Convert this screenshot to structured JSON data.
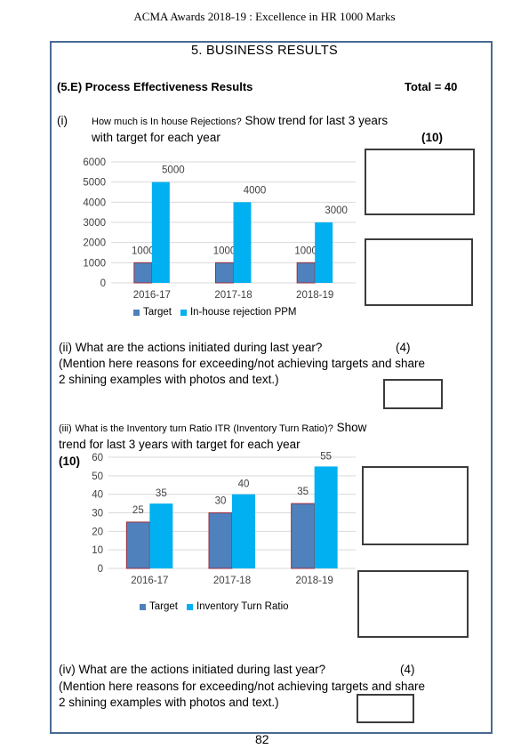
{
  "header": "ACMA Awards 2018-19 : Excellence in HR 1000 Marks",
  "section_title": "5. BUSINESS RESULTS",
  "subsection": "(5.E) Process Effectiveness Results",
  "total": "Total = 40",
  "q1": {
    "num": "(i)",
    "small": "How much is In house Rejections?",
    "rest": " Show trend for last 3 years",
    "line2": "with target for each year",
    "marks": "(10)"
  },
  "q2": {
    "line1": "(ii) What are the actions initiated during last year?",
    "marks": "(4)",
    "line2": "(Mention here reasons for exceeding/not achieving targets and share",
    "line3": "2 shining examples with photos and text.)"
  },
  "q3": {
    "num": "(iii)",
    "small": "What is the Inventory turn Ratio ITR (Inventory Turn Ratio)?",
    "rest": " Show",
    "line2": "trend for last 3 years with target for each year",
    "marks": "(10)"
  },
  "q4": {
    "line1": "(iv) What are the actions initiated during last year?",
    "marks": "(4)",
    "line2": "(Mention here reasons for exceeding/not achieving targets and share",
    "line3": "2 shining examples with photos and text.)"
  },
  "page_number": "82",
  "colors": {
    "target": "#4f81bd",
    "actual": "#00b0f0",
    "frame": "#4a6a93"
  },
  "chart_data": [
    {
      "type": "bar",
      "categories": [
        "2016-17",
        "2017-18",
        "2018-19"
      ],
      "series": [
        {
          "name": "Target",
          "values": [
            1000,
            1000,
            1000
          ]
        },
        {
          "name": "In-house rejection PPM",
          "values": [
            5000,
            4000,
            3000
          ]
        }
      ],
      "ylim": [
        0,
        6000
      ],
      "yticks": [
        "0",
        "1000",
        "2000",
        "3000",
        "4000",
        "5000",
        "6000"
      ],
      "grid": true,
      "legend": "bottom"
    },
    {
      "type": "bar",
      "categories": [
        "2016-17",
        "2017-18",
        "2018-19"
      ],
      "series": [
        {
          "name": "Target",
          "values": [
            25,
            30,
            35
          ]
        },
        {
          "name": "Inventory Turn Ratio",
          "values": [
            35,
            40,
            55
          ]
        }
      ],
      "ylim": [
        0,
        60
      ],
      "yticks": [
        "0",
        "10",
        "20",
        "30",
        "40",
        "50",
        "60"
      ],
      "grid": true,
      "legend": "bottom"
    }
  ]
}
